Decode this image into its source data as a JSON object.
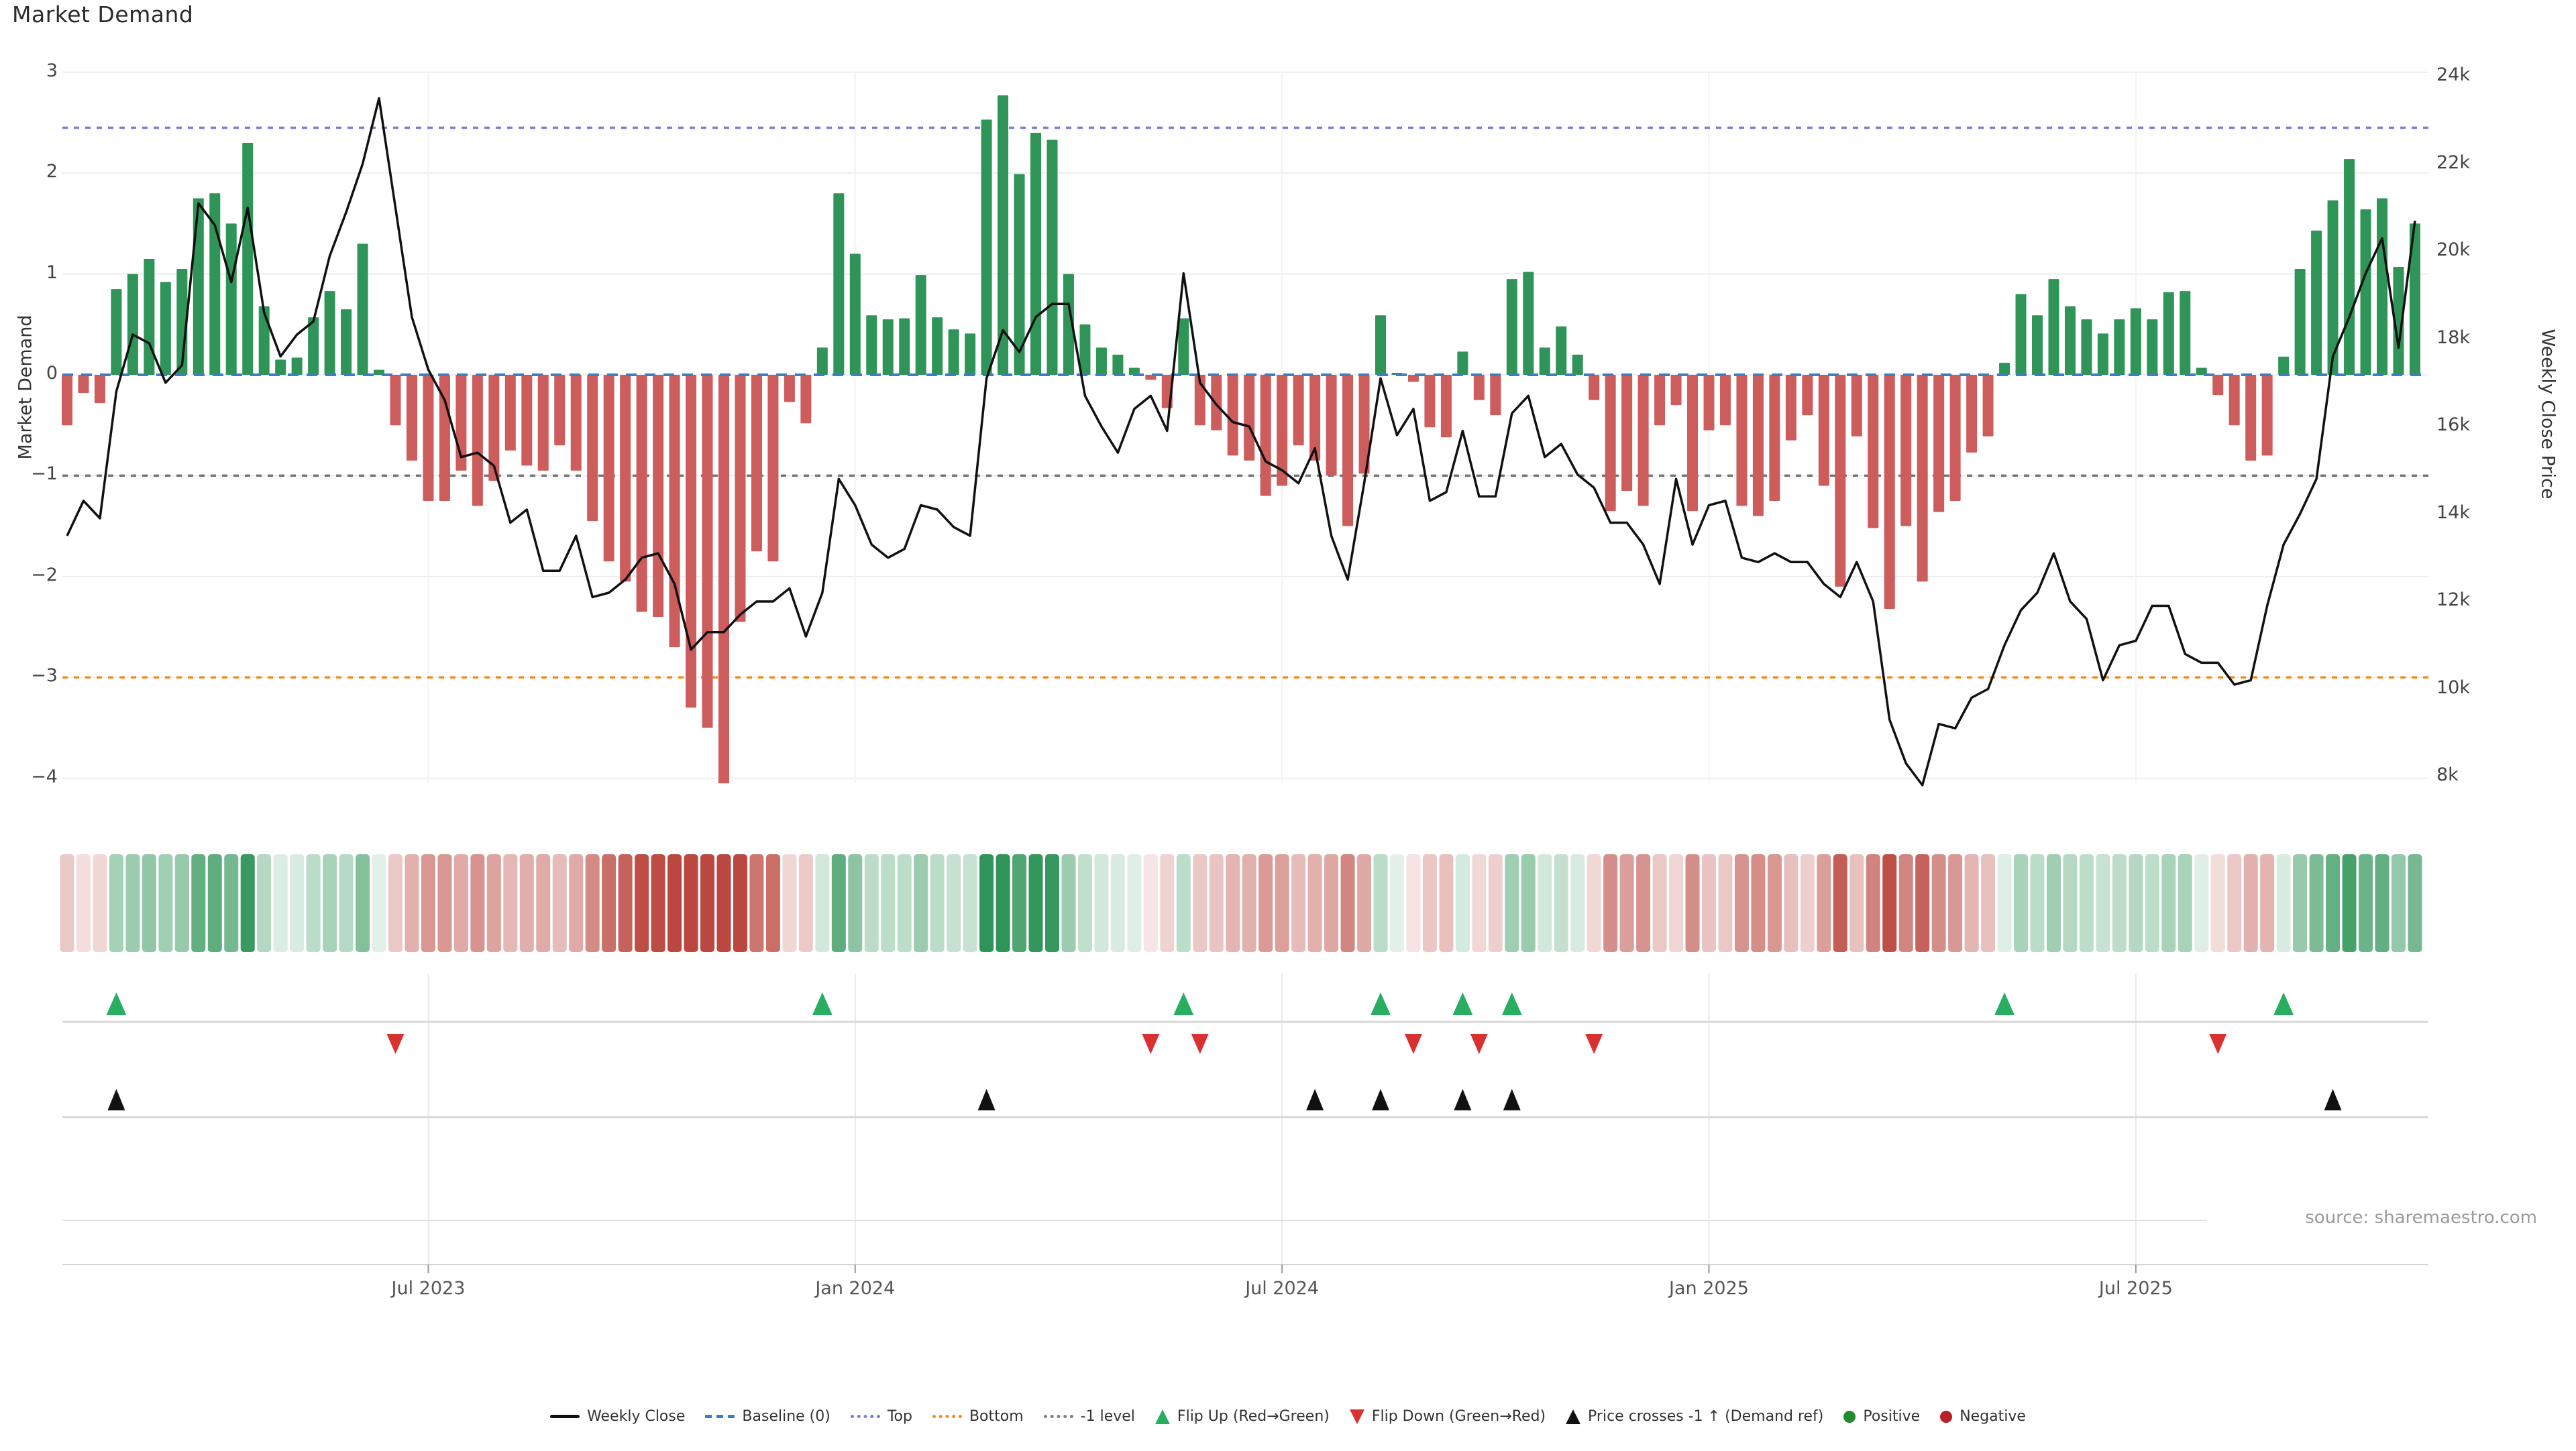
{
  "title": "Market Demand",
  "source": "source: sharemaestro.com",
  "axes": {
    "left": {
      "label": "Market Demand",
      "ticks": [
        "3",
        "2",
        "1",
        "0",
        "−1",
        "−2",
        "−3",
        "−4"
      ],
      "tick_values": [
        3,
        2,
        1,
        0,
        -1,
        -2,
        -3,
        -4
      ]
    },
    "right": {
      "label": "Weekly Close Price",
      "ticks": [
        "24k",
        "22k",
        "20k",
        "18k",
        "16k",
        "14k",
        "12k",
        "10k",
        "8k"
      ],
      "tick_values": [
        24,
        22,
        20,
        18,
        16,
        14,
        12,
        10,
        8
      ]
    },
    "x": {
      "ticks": [
        {
          "label": "Jul 2023",
          "week_index": 22
        },
        {
          "label": "Jan 2024",
          "week_index": 48
        },
        {
          "label": "Jul 2024",
          "week_index": 74
        },
        {
          "label": "Jan 2025",
          "week_index": 100
        },
        {
          "label": "Jul 2025",
          "week_index": 126
        }
      ]
    }
  },
  "legend": {
    "items": [
      {
        "id": "weekly-close",
        "swatch": "line",
        "color": "#111111",
        "label": "Weekly Close"
      },
      {
        "id": "baseline-0",
        "swatch": "dashed",
        "color": "#3d7ebf",
        "label": "Baseline (0)"
      },
      {
        "id": "top",
        "swatch": "dotted",
        "color": "#7b7bd9",
        "label": "Top"
      },
      {
        "id": "bottom",
        "swatch": "dotted",
        "color": "#f08c1e",
        "label": "Bottom"
      },
      {
        "id": "minus-1-level",
        "swatch": "dotted",
        "color": "#808080",
        "label": "-1 level"
      },
      {
        "id": "flip-up",
        "swatch": "tri-up",
        "color": "#27ae60",
        "label": "Flip Up (Red→Green)"
      },
      {
        "id": "flip-down",
        "swatch": "tri-down",
        "color": "#d93030",
        "label": "Flip Down (Green→Red)"
      },
      {
        "id": "price-crosses-minus-1",
        "swatch": "tri-up",
        "color": "#111111",
        "label": "Price crosses -1 ↑ (Demand ref)"
      },
      {
        "id": "positive",
        "swatch": "dot",
        "color": "#218c2d",
        "label": "Positive"
      },
      {
        "id": "negative",
        "swatch": "dot",
        "color": "#b92025",
        "label": "Negative"
      }
    ]
  },
  "chart_data": {
    "type": "combo-bar-line",
    "title": "Market Demand",
    "x": {
      "unit": "week",
      "count": 144,
      "tick_labels": [
        {
          "label": "Jul 2023",
          "week_index": 22
        },
        {
          "label": "Jan 2024",
          "week_index": 48
        },
        {
          "label": "Jul 2024",
          "week_index": 74
        },
        {
          "label": "Jan 2025",
          "week_index": 100
        },
        {
          "label": "Jul 2025",
          "week_index": 126
        }
      ]
    },
    "left_axis": {
      "label": "Market Demand",
      "range": [
        -4.35,
        3.0
      ],
      "ticks": [
        3,
        2,
        1,
        0,
        -1,
        -2,
        -3,
        -4
      ]
    },
    "right_axis": {
      "label": "Weekly Close Price",
      "range": [
        7.25,
        24.1
      ],
      "ticks": [
        24,
        22,
        20,
        18,
        16,
        14,
        12,
        10,
        8
      ],
      "tick_labels": [
        "24k",
        "22k",
        "20k",
        "18k",
        "16k",
        "14k",
        "12k",
        "10k",
        "8k"
      ]
    },
    "series": [
      {
        "name": "Market Demand",
        "type": "bar",
        "axis": "left",
        "positive_color": "#2f9458",
        "negative_color": "#cd5c5c",
        "values": [
          -0.5,
          -0.18,
          -0.28,
          0.85,
          1.0,
          1.15,
          0.92,
          1.05,
          1.75,
          1.8,
          1.5,
          2.3,
          0.68,
          0.15,
          0.17,
          0.57,
          0.83,
          0.65,
          1.3,
          0.05,
          -0.5,
          -0.85,
          -1.25,
          -1.25,
          -0.95,
          -1.3,
          -1.05,
          -0.75,
          -0.9,
          -0.95,
          -0.7,
          -0.95,
          -1.45,
          -1.85,
          -2.05,
          -2.35,
          -2.4,
          -2.7,
          -3.3,
          -3.5,
          -4.05,
          -2.45,
          -1.75,
          -1.85,
          -0.27,
          -0.48,
          0.27,
          1.8,
          1.2,
          0.59,
          0.55,
          0.56,
          0.99,
          0.57,
          0.45,
          0.41,
          2.53,
          2.77,
          1.99,
          2.4,
          2.33,
          1.0,
          0.5,
          0.27,
          0.2,
          0.07,
          -0.05,
          -0.33,
          0.56,
          -0.5,
          -0.55,
          -0.8,
          -0.85,
          -1.2,
          -1.1,
          -0.7,
          -0.85,
          -1.0,
          -1.5,
          -0.98,
          0.59,
          0.02,
          -0.07,
          -0.52,
          -0.62,
          0.23,
          -0.25,
          -0.4,
          0.95,
          1.02,
          0.27,
          0.48,
          0.2,
          -0.25,
          -1.35,
          -1.15,
          -1.3,
          -0.5,
          -0.3,
          -1.35,
          -0.55,
          -0.5,
          -1.3,
          -1.4,
          -1.25,
          -0.65,
          -0.4,
          -1.1,
          -2.1,
          -0.61,
          -1.52,
          -2.32,
          -1.5,
          -2.05,
          -1.36,
          -1.25,
          -0.77,
          -0.61,
          0.12,
          0.8,
          0.59,
          0.95,
          0.68,
          0.55,
          0.41,
          0.55,
          0.66,
          0.55,
          0.82,
          0.83,
          0.07,
          -0.2,
          -0.5,
          -0.85,
          -0.8,
          0.18,
          1.05,
          1.43,
          1.73,
          2.14,
          1.64,
          1.75,
          1.07,
          1.5
        ]
      },
      {
        "name": "Weekly Close",
        "type": "line",
        "axis": "right",
        "color": "#111111",
        "values": [
          13.5,
          14.3,
          13.9,
          16.8,
          18.1,
          17.9,
          17.0,
          17.4,
          21.1,
          20.6,
          19.3,
          21.0,
          18.6,
          17.6,
          18.1,
          18.4,
          19.9,
          20.9,
          22.0,
          23.5,
          21.0,
          18.5,
          17.3,
          16.6,
          15.3,
          15.4,
          15.1,
          13.8,
          14.1,
          12.7,
          12.7,
          13.5,
          12.1,
          12.2,
          12.5,
          13.0,
          13.1,
          12.4,
          10.9,
          11.3,
          11.3,
          11.7,
          12.0,
          12.0,
          12.3,
          11.2,
          12.2,
          14.8,
          14.2,
          13.3,
          13.0,
          13.2,
          14.2,
          14.1,
          13.7,
          13.5,
          17.1,
          18.2,
          17.7,
          18.5,
          18.8,
          18.8,
          16.7,
          16.0,
          15.4,
          16.4,
          16.7,
          15.9,
          19.5,
          17.0,
          16.5,
          16.1,
          16.0,
          15.2,
          15.0,
          14.7,
          15.5,
          13.5,
          12.5,
          14.7,
          17.1,
          15.8,
          16.4,
          14.3,
          14.5,
          15.9,
          14.4,
          14.4,
          16.3,
          16.7,
          15.3,
          15.6,
          14.9,
          14.6,
          13.8,
          13.8,
          13.3,
          12.4,
          14.8,
          13.3,
          14.2,
          14.3,
          13.0,
          12.9,
          13.1,
          12.9,
          12.9,
          12.4,
          12.1,
          12.9,
          12.0,
          9.3,
          8.3,
          7.8,
          9.2,
          9.1,
          9.8,
          10.0,
          11.0,
          11.8,
          12.2,
          13.1,
          12.0,
          11.6,
          10.2,
          11.0,
          11.1,
          11.9,
          11.9,
          10.8,
          10.6,
          10.6,
          10.1,
          10.2,
          11.9,
          13.3,
          14.0,
          14.8,
          17.6,
          18.5,
          19.5,
          20.3,
          17.8,
          20.7
        ]
      }
    ],
    "reference_lines": [
      {
        "name": "Baseline (0)",
        "axis": "left",
        "value": 0,
        "color": "#3d7ebf",
        "dash": "dashed"
      },
      {
        "name": "Top",
        "axis": "left",
        "value": 2.45,
        "color": "#7b7bd9",
        "dash": "dotted"
      },
      {
        "name": "Bottom",
        "axis": "left",
        "value": -3,
        "color": "#f08c1e",
        "dash": "dotted"
      },
      {
        "name": "-1 level",
        "axis": "left",
        "value": -1,
        "color": "#737373",
        "dash": "dotted"
      }
    ],
    "heatmap": {
      "source_series": "Market Demand",
      "positive_color": "#2f9458",
      "negative_color": "#bb4840"
    },
    "markers": {
      "flip_up": {
        "label": "Flip Up (Red→Green)",
        "color": "#27ae60",
        "week_indices": [
          3,
          46,
          68,
          80,
          85,
          88,
          118,
          135
        ]
      },
      "flip_down": {
        "label": "Flip Down (Green→Red)",
        "color": "#d93030",
        "week_indices": [
          20,
          66,
          69,
          82,
          86,
          93,
          131
        ]
      },
      "price_cross": {
        "label": "Price crosses -1 ↑ (Demand ref)",
        "color": "#111111",
        "week_indices": [
          3,
          56,
          76,
          80,
          85,
          88,
          138
        ]
      }
    }
  }
}
